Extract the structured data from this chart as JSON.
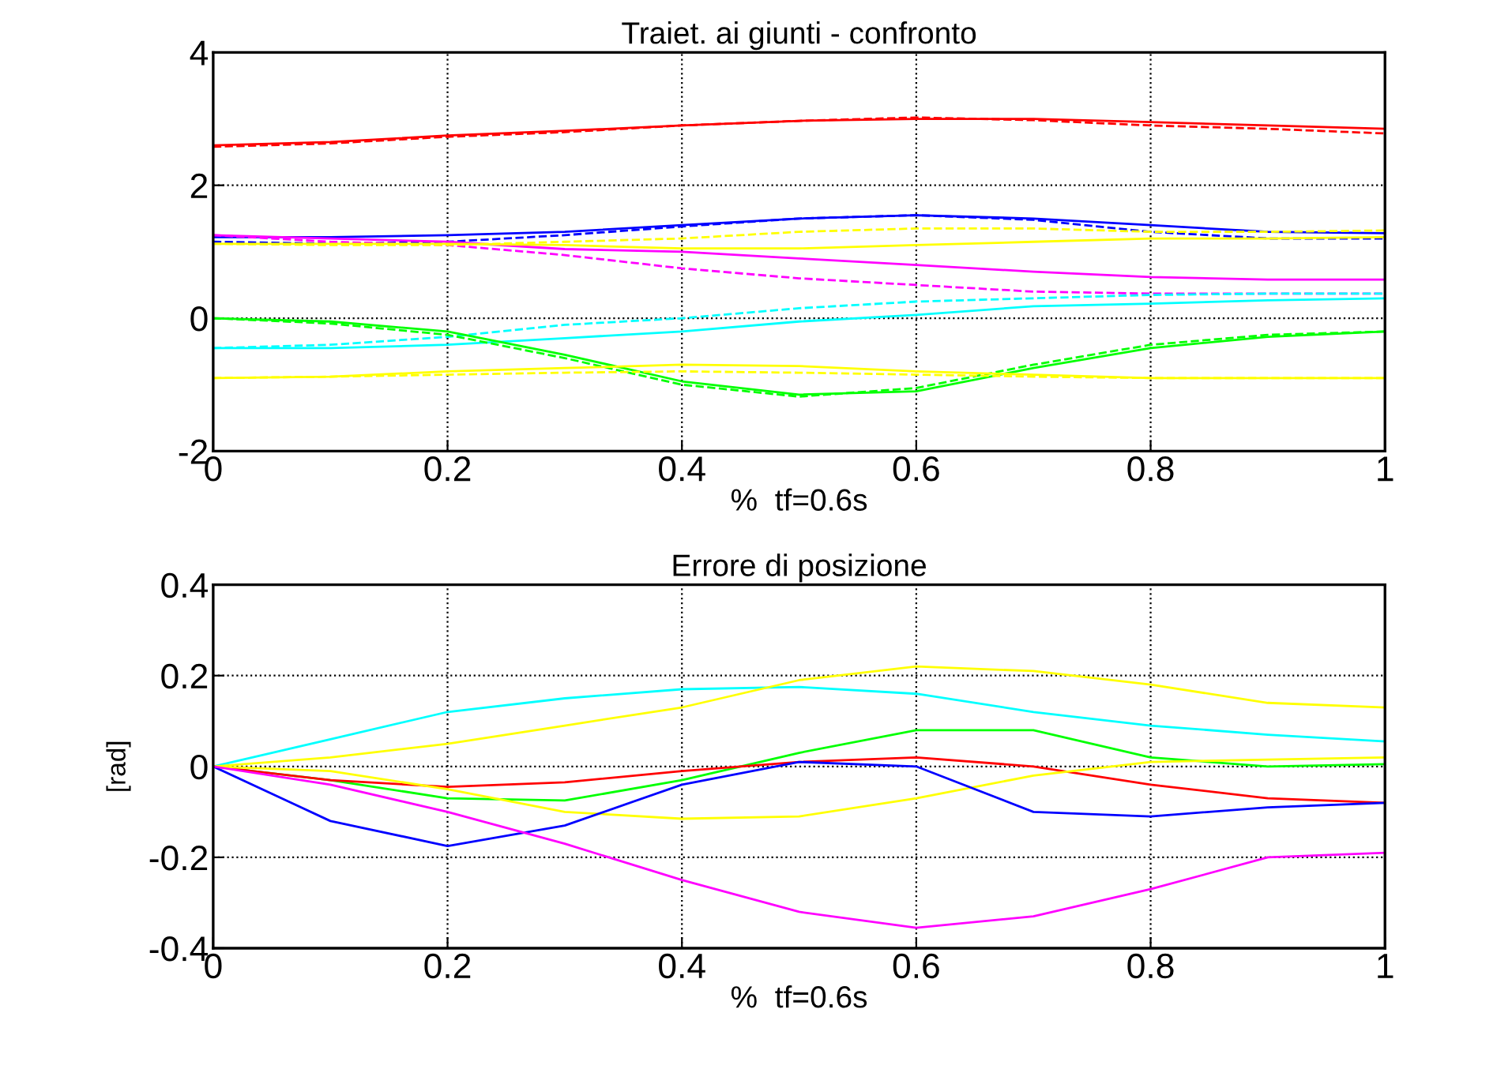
{
  "chart_data": [
    {
      "type": "line",
      "title": "Traiet. ai giunti - confronto",
      "xlabel": "%  tf=0.6s",
      "xlim": [
        0,
        1
      ],
      "ylim": [
        -2,
        4
      ],
      "xticks": [
        0,
        0.2,
        0.4,
        0.6,
        0.8,
        1
      ],
      "yticks": [
        -2,
        0,
        2,
        4
      ],
      "grid": true,
      "x": [
        0,
        0.1,
        0.2,
        0.3,
        0.4,
        0.5,
        0.6,
        0.7,
        0.8,
        0.9,
        1
      ],
      "series": [
        {
          "color": "#ff0000",
          "line_style": "solid",
          "values": [
            2.6,
            2.65,
            2.75,
            2.82,
            2.9,
            2.97,
            3.0,
            3.0,
            2.95,
            2.9,
            2.85
          ]
        },
        {
          "color": "#ff0000",
          "line_style": "dashed",
          "values": [
            2.58,
            2.63,
            2.73,
            2.8,
            2.9,
            2.97,
            3.02,
            2.98,
            2.9,
            2.85,
            2.78
          ]
        },
        {
          "color": "#0000ff",
          "line_style": "solid",
          "values": [
            1.22,
            1.22,
            1.25,
            1.3,
            1.4,
            1.5,
            1.55,
            1.5,
            1.4,
            1.3,
            1.28
          ]
        },
        {
          "color": "#0000ff",
          "line_style": "dashed",
          "values": [
            1.15,
            1.12,
            1.15,
            1.25,
            1.38,
            1.5,
            1.55,
            1.48,
            1.3,
            1.2,
            1.2
          ]
        },
        {
          "color": "#ff00ff",
          "line_style": "solid",
          "values": [
            1.25,
            1.2,
            1.15,
            1.04,
            1.0,
            0.9,
            0.8,
            0.7,
            0.62,
            0.58,
            0.58
          ]
        },
        {
          "color": "#ff00ff",
          "line_style": "dashed",
          "values": [
            1.25,
            1.15,
            1.1,
            0.95,
            0.75,
            0.6,
            0.5,
            0.4,
            0.37,
            0.37,
            0.37
          ]
        },
        {
          "color": "#ffff00",
          "line_style": "solid",
          "values": [
            1.12,
            1.12,
            1.12,
            1.1,
            1.05,
            1.05,
            1.1,
            1.15,
            1.2,
            1.2,
            1.22
          ]
        },
        {
          "color": "#ffff00",
          "line_style": "dashed",
          "values": [
            1.12,
            1.1,
            1.1,
            1.15,
            1.2,
            1.3,
            1.35,
            1.35,
            1.3,
            1.3,
            1.32
          ]
        },
        {
          "color": "#00ffff",
          "line_style": "solid",
          "values": [
            -0.45,
            -0.45,
            -0.4,
            -0.3,
            -0.2,
            -0.05,
            0.05,
            0.18,
            0.22,
            0.27,
            0.3
          ]
        },
        {
          "color": "#00ffff",
          "line_style": "dashed",
          "values": [
            -0.45,
            -0.4,
            -0.28,
            -0.1,
            0.0,
            0.15,
            0.25,
            0.3,
            0.35,
            0.37,
            0.37
          ]
        },
        {
          "color": "#00ff00",
          "line_style": "solid",
          "values": [
            0.0,
            -0.05,
            -0.2,
            -0.55,
            -0.95,
            -1.15,
            -1.1,
            -0.75,
            -0.45,
            -0.28,
            -0.2
          ]
        },
        {
          "color": "#00ff00",
          "line_style": "dashed",
          "values": [
            0.0,
            -0.08,
            -0.25,
            -0.6,
            -1.0,
            -1.18,
            -1.05,
            -0.7,
            -0.4,
            -0.25,
            -0.2
          ]
        },
        {
          "color": "#ffff00",
          "line_style": "solid",
          "values": [
            -0.9,
            -0.88,
            -0.8,
            -0.75,
            -0.7,
            -0.72,
            -0.8,
            -0.85,
            -0.9,
            -0.9,
            -0.9
          ]
        },
        {
          "color": "#ffff00",
          "line_style": "dashed",
          "values": [
            -0.9,
            -0.88,
            -0.85,
            -0.82,
            -0.8,
            -0.82,
            -0.85,
            -0.88,
            -0.9,
            -0.9,
            -0.9
          ]
        }
      ]
    },
    {
      "type": "line",
      "title": "Errore di posizione",
      "xlabel": "%  tf=0.6s",
      "ylabel": "[rad]",
      "xlim": [
        0,
        1
      ],
      "ylim": [
        -0.4,
        0.4
      ],
      "xticks": [
        0,
        0.2,
        0.4,
        0.6,
        0.8,
        1
      ],
      "yticks": [
        -0.4,
        -0.2,
        0,
        0.2,
        0.4
      ],
      "grid": true,
      "x": [
        0,
        0.1,
        0.2,
        0.3,
        0.4,
        0.5,
        0.6,
        0.7,
        0.8,
        0.9,
        1
      ],
      "series": [
        {
          "color": "#00ffff",
          "line_style": "solid",
          "values": [
            0,
            0.06,
            0.12,
            0.15,
            0.17,
            0.175,
            0.16,
            0.12,
            0.09,
            0.07,
            0.055
          ]
        },
        {
          "color": "#ffff00",
          "line_style": "solid",
          "values": [
            0,
            0.02,
            0.05,
            0.09,
            0.13,
            0.19,
            0.22,
            0.21,
            0.18,
            0.14,
            0.13
          ]
        },
        {
          "color": "#00ff00",
          "line_style": "solid",
          "values": [
            0,
            -0.03,
            -0.07,
            -0.075,
            -0.03,
            0.03,
            0.08,
            0.08,
            0.02,
            0.0,
            0.005
          ]
        },
        {
          "color": "#ff0000",
          "line_style": "solid",
          "values": [
            0,
            -0.03,
            -0.045,
            -0.035,
            -0.01,
            0.01,
            0.02,
            0.0,
            -0.04,
            -0.07,
            -0.08
          ]
        },
        {
          "color": "#ffff00",
          "line_style": "solid",
          "values": [
            0,
            -0.01,
            -0.05,
            -0.1,
            -0.115,
            -0.11,
            -0.07,
            -0.02,
            0.01,
            0.015,
            0.02
          ]
        },
        {
          "color": "#0000ff",
          "line_style": "solid",
          "values": [
            0,
            -0.12,
            -0.175,
            -0.13,
            -0.04,
            0.01,
            0.0,
            -0.1,
            -0.11,
            -0.09,
            -0.08
          ]
        },
        {
          "color": "#ff00ff",
          "line_style": "solid",
          "values": [
            0,
            -0.04,
            -0.1,
            -0.17,
            -0.25,
            -0.32,
            -0.355,
            -0.33,
            -0.27,
            -0.2,
            -0.19
          ]
        }
      ]
    }
  ]
}
